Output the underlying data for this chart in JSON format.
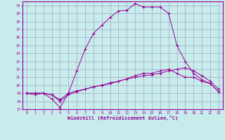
{
  "xlabel": "Windchill (Refroidissement éolien,°C)",
  "xlim": [
    -0.5,
    23.5
  ],
  "ylim": [
    17,
    30.5
  ],
  "xticks": [
    0,
    1,
    2,
    3,
    4,
    5,
    6,
    7,
    8,
    9,
    10,
    11,
    12,
    13,
    14,
    15,
    16,
    17,
    18,
    19,
    20,
    21,
    22,
    23
  ],
  "yticks": [
    17,
    18,
    19,
    20,
    21,
    22,
    23,
    24,
    25,
    26,
    27,
    28,
    29,
    30
  ],
  "background_color": "#c8ecec",
  "grid_color": "#9999bb",
  "line_color": "#990099",
  "series": [
    [
      19.0,
      18.8,
      19.0,
      18.3,
      17.2,
      19.0,
      21.8,
      24.5,
      26.5,
      27.5,
      28.5,
      29.3,
      29.4,
      30.2,
      29.8,
      29.8,
      29.8,
      29.0,
      25.0,
      23.0,
      21.5,
      20.7,
      20.2,
      19.2
    ],
    [
      19.0,
      19.0,
      19.0,
      18.8,
      18.0,
      18.8,
      19.2,
      19.5,
      19.8,
      20.0,
      20.3,
      20.5,
      20.8,
      21.2,
      21.5,
      21.5,
      21.8,
      22.0,
      21.5,
      21.0,
      21.0,
      20.5,
      20.2,
      19.2
    ],
    [
      19.0,
      19.0,
      19.0,
      18.8,
      18.2,
      19.0,
      19.3,
      19.5,
      19.8,
      20.0,
      20.2,
      20.5,
      20.8,
      21.0,
      21.2,
      21.3,
      21.5,
      21.8,
      22.0,
      22.2,
      21.8,
      21.2,
      20.5,
      19.5
    ]
  ],
  "tick_fontsize": 3.8,
  "xlabel_fontsize": 5.0
}
